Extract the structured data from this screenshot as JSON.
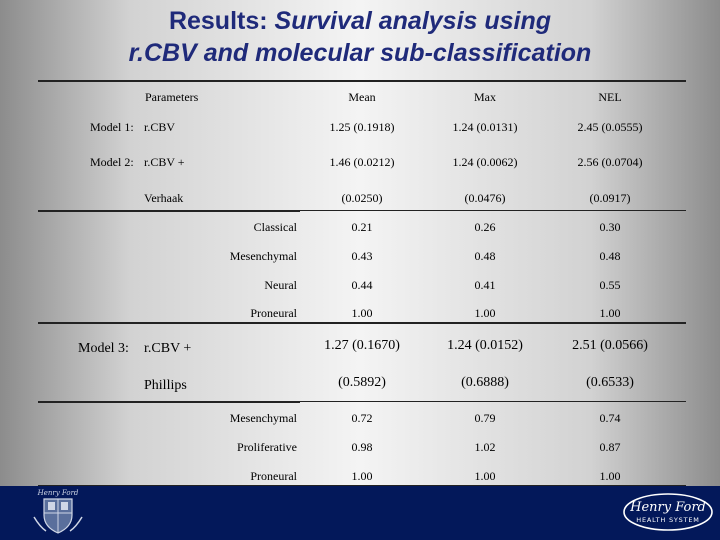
{
  "title": {
    "line1_prefix": "Results: ",
    "line1_italic": "Survival analysis using",
    "line2": "r.CBV and molecular sub-classification"
  },
  "headers": {
    "parameters": "Parameters",
    "mean": "Mean",
    "max": "Max",
    "nel": "NEL"
  },
  "model1": {
    "label": "Model 1:",
    "param": "r.CBV",
    "mean": "1.25 (0.1918)",
    "max": "1.24 (0.0131)",
    "nel": "2.45 (0.0555)"
  },
  "model2": {
    "label": "Model 2:",
    "param": "r.CBV +",
    "mean": "1.46 (0.0212)",
    "max": "1.24 (0.0062)",
    "nel": "2.56 (0.0704)",
    "group": {
      "label": "Verhaak",
      "mean": "(0.0250)",
      "max": "(0.0476)",
      "nel": "(0.0917)"
    },
    "rows": [
      {
        "label": "Classical",
        "mean": "0.21",
        "max": "0.26",
        "nel": "0.30"
      },
      {
        "label": "Mesenchymal",
        "mean": "0.43",
        "max": "0.48",
        "nel": "0.48"
      },
      {
        "label": "Neural",
        "mean": "0.44",
        "max": "0.41",
        "nel": "0.55"
      },
      {
        "label": "Proneural",
        "mean": "1.00",
        "max": "1.00",
        "nel": "1.00"
      }
    ]
  },
  "model3": {
    "label": "Model 3:",
    "param": "r.CBV +",
    "mean": "1.27 (0.1670)",
    "max": "1.24 (0.0152)",
    "nel": "2.51 (0.0566)",
    "group": {
      "label": "Phillips",
      "mean": "(0.5892)",
      "max": "(0.6888)",
      "nel": "(0.6533)"
    },
    "rows": [
      {
        "label": "Mesenchymal",
        "mean": "0.72",
        "max": "0.79",
        "nel": "0.74"
      },
      {
        "label": "Proliferative",
        "mean": "0.98",
        "max": "1.02",
        "nel": "0.87"
      },
      {
        "label": "Proneural",
        "mean": "1.00",
        "max": "1.00",
        "nel": "1.00"
      }
    ]
  },
  "logos": {
    "left_text": "Henry Ford",
    "right_line1": "Henry Ford",
    "right_line2": "HEALTH SYSTEM",
    "navy": "#03185a",
    "title_blue": "#1f2a7a"
  }
}
